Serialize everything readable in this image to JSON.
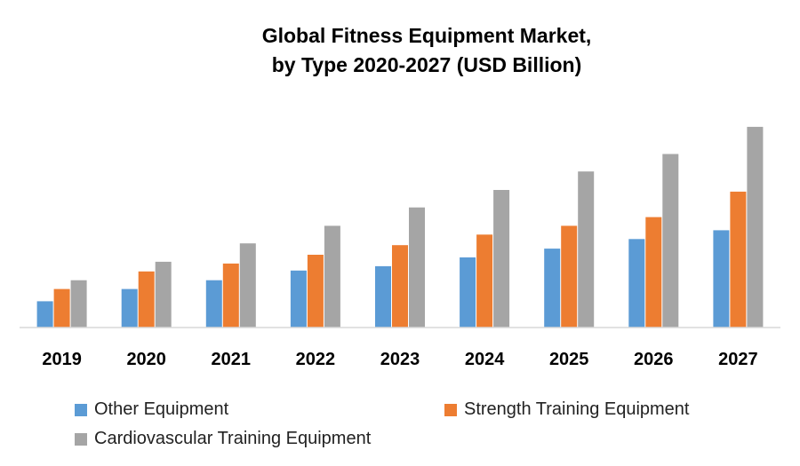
{
  "chart_data": {
    "type": "bar",
    "title_line1": "Global Fitness Equipment Market,",
    "title_line2": "by Type 2020-2027 (USD Billion)",
    "categories": [
      "2019",
      "2020",
      "2021",
      "2022",
      "2023",
      "2024",
      "2025",
      "2026",
      "2027"
    ],
    "series": [
      {
        "name": "Other Equipment",
        "color": "#5B9BD5",
        "values": [
          3.0,
          4.4,
          5.4,
          6.5,
          7.0,
          8.0,
          9.0,
          10.1,
          11.1
        ]
      },
      {
        "name": "Strength Training Equipment",
        "color": "#ED7D31",
        "values": [
          4.4,
          6.4,
          7.3,
          8.3,
          9.4,
          10.6,
          11.6,
          12.6,
          15.5
        ]
      },
      {
        "name": "Cardiovascular Training Equipment",
        "color": "#A5A5A5",
        "values": [
          5.4,
          7.5,
          9.6,
          11.6,
          13.7,
          15.7,
          17.8,
          19.8,
          22.9
        ]
      }
    ],
    "ylim": [
      0,
      24
    ],
    "grid": false,
    "legend_position": "bottom"
  }
}
